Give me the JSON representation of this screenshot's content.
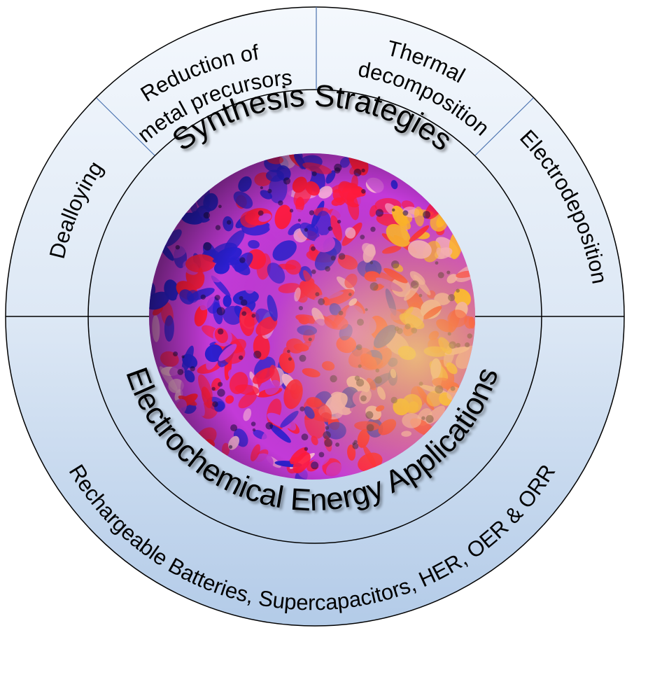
{
  "diagram": {
    "inner_ring": {
      "top": "Synthesis Strategies",
      "bottom": "Electrochemical Energy Applications"
    },
    "outer_ring_top": [
      {
        "id": "dealloying",
        "label": "Dealloying"
      },
      {
        "id": "reduction",
        "label_lines": [
          "Reduction of",
          "metal precursors"
        ]
      },
      {
        "id": "thermal",
        "label_lines": [
          "Thermal",
          "decomposition"
        ]
      },
      {
        "id": "electrodeposition",
        "label": "Electrodeposition"
      }
    ],
    "outer_ring_bottom": "Rechargeable Batteries, Supercapacitors, HER, OER & ORR",
    "sphere": {
      "palette": [
        "#2a1fcf",
        "#ff1a3c",
        "#c33ad8",
        "#f7b0d6",
        "#ffb52a"
      ]
    },
    "colors": {
      "ring_top": "#eaf1fa",
      "ring_bottom": "#b8d0ea",
      "stroke": "#000000",
      "divider": "#4a72b0"
    }
  }
}
